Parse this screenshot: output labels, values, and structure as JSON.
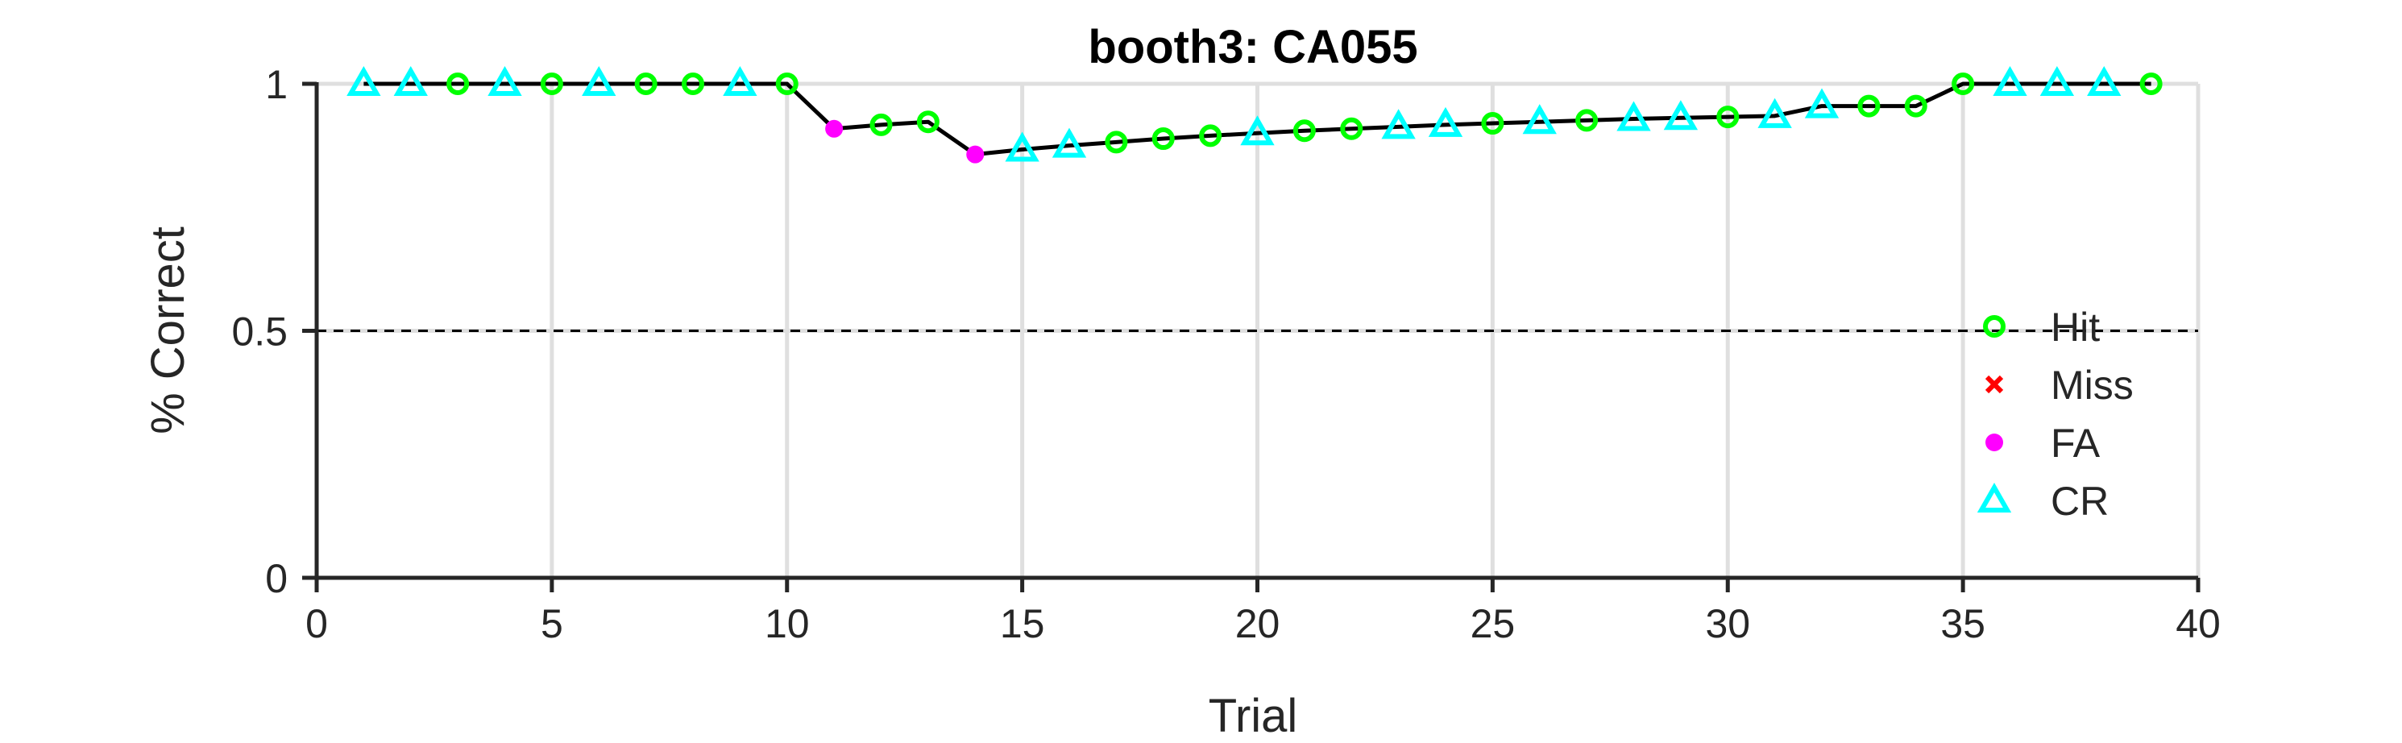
{
  "chart_data": {
    "type": "line",
    "title": "booth3: CA055",
    "xlabel": "Trial",
    "ylabel": "% Correct",
    "xlim": [
      0,
      40
    ],
    "ylim": [
      0,
      1
    ],
    "xticks": [
      0,
      5,
      10,
      15,
      20,
      25,
      30,
      35,
      40
    ],
    "xtick_labels": [
      "0",
      "5",
      "10",
      "15",
      "20",
      "25",
      "30",
      "35",
      "40"
    ],
    "yticks": [
      0,
      0.5,
      1
    ],
    "ytick_labels": [
      "0",
      "0.5",
      "1"
    ],
    "grid": true,
    "chance_level": 0.5,
    "legend_position": "right",
    "series": [
      {
        "x": [
          1,
          2,
          3,
          4,
          5,
          6,
          7,
          8,
          9,
          10,
          11,
          12,
          13,
          14,
          15,
          16,
          17,
          18,
          19,
          20,
          21,
          22,
          23,
          24,
          25,
          26,
          27,
          28,
          29,
          30,
          31,
          32,
          33,
          34,
          35,
          36,
          37,
          38,
          39
        ],
        "y": [
          1,
          1,
          1,
          1,
          1,
          1,
          1,
          1,
          1,
          1,
          0.909,
          0.917,
          0.923,
          0.857,
          0.867,
          0.875,
          0.882,
          0.889,
          0.895,
          0.9,
          0.905,
          0.909,
          0.913,
          0.917,
          0.92,
          0.923,
          0.926,
          0.929,
          0.931,
          0.933,
          0.935,
          0.955,
          0.955,
          0.955,
          1,
          1,
          1,
          1,
          1
        ],
        "outcome": [
          "CR",
          "CR",
          "Hit",
          "CR",
          "Hit",
          "CR",
          "Hit",
          "Hit",
          "CR",
          "Hit",
          "FA",
          "Hit",
          "Hit",
          "FA",
          "CR",
          "CR",
          "Hit",
          "Hit",
          "Hit",
          "CR",
          "Hit",
          "Hit",
          "CR",
          "CR",
          "Hit",
          "CR",
          "Hit",
          "CR",
          "CR",
          "Hit",
          "CR",
          "CR",
          "Hit",
          "Hit",
          "Hit",
          "CR",
          "CR",
          "CR",
          "Hit"
        ]
      }
    ],
    "legend": [
      {
        "key": "Hit",
        "label": "Hit",
        "marker": "circle-open",
        "color": "#00ff00"
      },
      {
        "key": "Miss",
        "label": "Miss",
        "marker": "x",
        "color": "#ff0000"
      },
      {
        "key": "FA",
        "label": "FA",
        "marker": "circle-filled",
        "color": "#ff00ff"
      },
      {
        "key": "CR",
        "label": "CR",
        "marker": "triangle",
        "color": "#00ffff"
      }
    ],
    "colors": {
      "line": "#000000",
      "grid": "#dfdfdf",
      "axis": "#262626"
    }
  }
}
